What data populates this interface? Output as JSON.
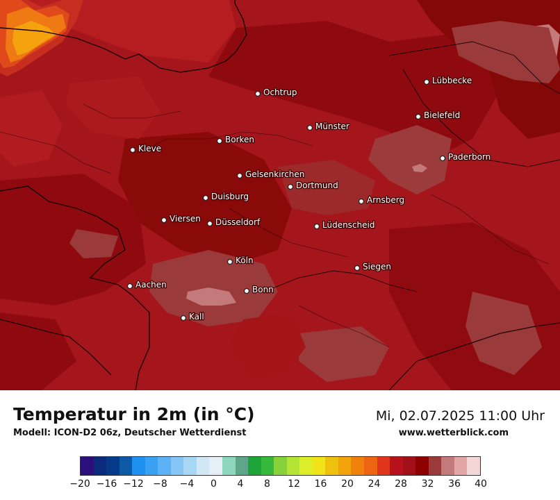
{
  "map": {
    "cities": [
      {
        "name": "Lübbecke"
      },
      {
        "name": "Ochtrup"
      },
      {
        "name": "Bielefeld"
      },
      {
        "name": "Münster"
      },
      {
        "name": "Borken"
      },
      {
        "name": "Kleve"
      },
      {
        "name": "Paderborn"
      },
      {
        "name": "Gelsenkirchen"
      },
      {
        "name": "Dortmund"
      },
      {
        "name": "Duisburg"
      },
      {
        "name": "Arnsberg"
      },
      {
        "name": "Viersen"
      },
      {
        "name": "Düsseldorf"
      },
      {
        "name": "Lüdenscheid"
      },
      {
        "name": "Köln"
      },
      {
        "name": "Siegen"
      },
      {
        "name": "Aachen"
      },
      {
        "name": "Bonn"
      },
      {
        "name": "Kall"
      }
    ]
  },
  "header": {
    "title": "Temperatur in 2m (in °C)",
    "subtitle": "Modell: ICON-D2 06z, Deutscher Wetterdienst",
    "datetime": "Mi, 02.07.2025 11:00 Uhr",
    "source": "www.wetterblick.com"
  },
  "legend": {
    "ticks": [
      "−20",
      "−16",
      "−12",
      "−8",
      "−4",
      "0",
      "4",
      "8",
      "12",
      "16",
      "20",
      "24",
      "28",
      "32",
      "36",
      "40"
    ],
    "colors": [
      "#2b0f7a",
      "#0a2a7c",
      "#053a8a",
      "#0c5aa6",
      "#1e90f0",
      "#3aa0f2",
      "#5cb2f4",
      "#86c6f7",
      "#a8d6f5",
      "#d2e7f6",
      "#e6eef6",
      "#8fd6bf",
      "#5fa58b",
      "#1da53a",
      "#36b83a",
      "#87d238",
      "#b4e535",
      "#dcee2a",
      "#f0e317",
      "#efc10f",
      "#f3a40c",
      "#f0810c",
      "#ed6513",
      "#e0351b",
      "#b5121b",
      "#a30f18",
      "#8e0000",
      "#9b3a3a",
      "#c47a7a",
      "#e2a6a6",
      "#f3d6d6"
    ]
  }
}
